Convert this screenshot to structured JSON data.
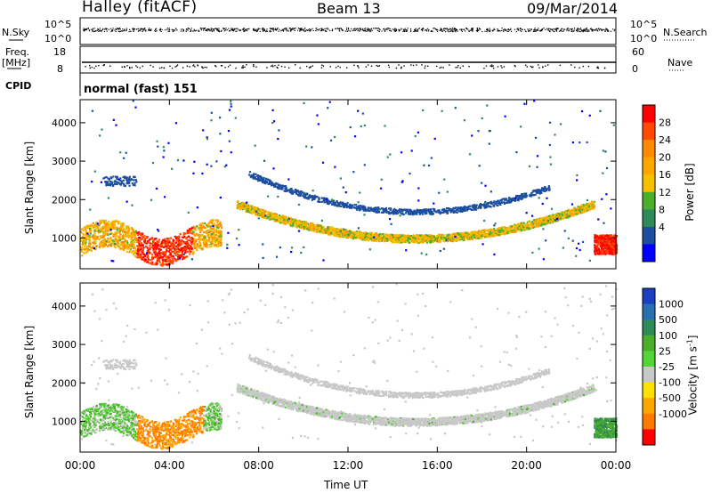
{
  "header": {
    "title_left": "Halley (fitACF)",
    "title_center": "Beam 13",
    "title_right": "09/Mar/2014"
  },
  "strip": {
    "nsky_label": "N.Sky",
    "nsearch_label": "N.Search",
    "freq_label": "Freq.",
    "freq_unit": "[MHz]",
    "nave_label": "Nave",
    "cpid_label": "CPID",
    "cpid_value": "normal (fast) 151",
    "noise_tick_top": "10^5",
    "noise_tick_bottom": "10^0",
    "freq_tick_top": "18",
    "freq_tick_bottom": "8",
    "nave_tick_top": "60",
    "nave_tick_bottom": "0"
  },
  "chart_data": [
    {
      "type": "heatmap",
      "title": "Power",
      "ylabel": "Slant Range [km]",
      "xlabel": "Time UT",
      "x_range_hours": [
        0,
        24
      ],
      "ylim": [
        200,
        4600
      ],
      "y_ticks": [
        "1000",
        "2000",
        "3000",
        "4000"
      ],
      "x_ticks": [
        "00:00",
        "04:00",
        "08:00",
        "12:00",
        "16:00",
        "20:00",
        "00:00"
      ],
      "colorbar": {
        "label": "Power [dB]",
        "ticks": [
          "28",
          "24",
          "20",
          "16",
          "12",
          "8",
          "4"
        ],
        "colors": [
          "#ff0000",
          "#ff4a00",
          "#ff8a00",
          "#ffa500",
          "#f5c000",
          "#4caf2c",
          "#2e8b57",
          "#1c4fa0",
          "#0000ff"
        ]
      }
    },
    {
      "type": "heatmap",
      "title": "Velocity",
      "ylabel": "Slant Range [km]",
      "xlabel": "Time UT",
      "x_range_hours": [
        0,
        24
      ],
      "ylim": [
        200,
        4600
      ],
      "y_ticks": [
        "1000",
        "2000",
        "3000",
        "4000"
      ],
      "x_ticks": [
        "00:00",
        "04:00",
        "08:00",
        "12:00",
        "16:00",
        "20:00",
        "00:00"
      ],
      "colorbar": {
        "label": "Velocity [m s",
        "label_sup": "-1",
        "label_close": "]",
        "ticks": [
          "1000",
          "500",
          "100",
          "25",
          "-25",
          "-100",
          "-500",
          "-1000"
        ],
        "colors": [
          "#1c3fbf",
          "#2a6fb0",
          "#2e8b57",
          "#4caf2c",
          "#55d535",
          "#c8c8c8",
          "#ffe000",
          "#ffa500",
          "#ff7a00",
          "#ff0000"
        ]
      }
    }
  ],
  "time_axis_label": "Time UT"
}
